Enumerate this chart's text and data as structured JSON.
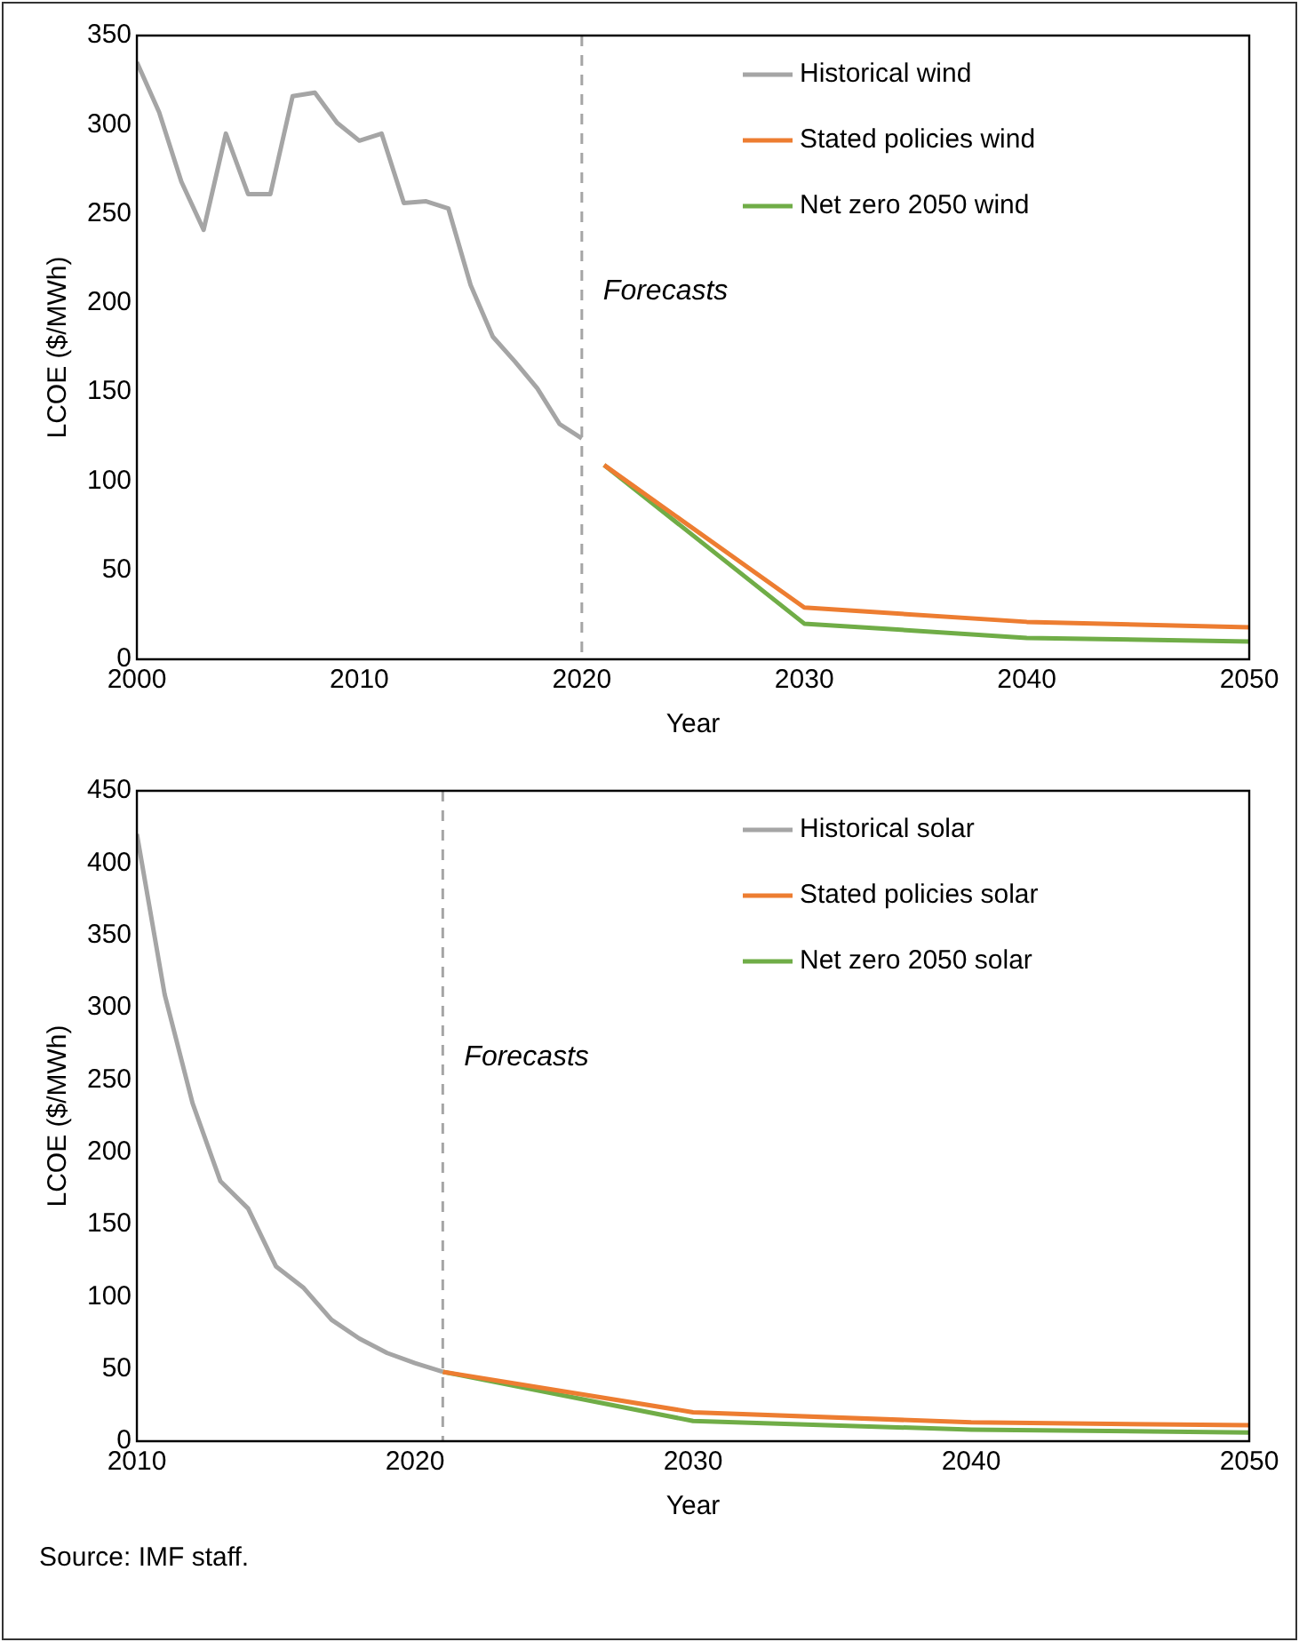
{
  "chart_data": [
    {
      "type": "line",
      "xlabel": "Year",
      "ylabel": "LCOE ($/MWh)",
      "xlim": [
        2000,
        2050
      ],
      "xticks": [
        2000,
        2010,
        2020,
        2030,
        2040,
        2050
      ],
      "ylim": [
        0,
        350
      ],
      "yticks": [
        0,
        50,
        100,
        150,
        200,
        250,
        300,
        350
      ],
      "grid": false,
      "legend": "top right",
      "marker": "none",
      "series": [
        {
          "name": "Historical wind",
          "color": "#a5a5a5",
          "x": [
            2000,
            2001,
            2002,
            2003,
            2004,
            2005,
            2006,
            2007,
            2008,
            2009,
            2010,
            2011,
            2012,
            2013,
            2014,
            2015,
            2016,
            2017,
            2018,
            2019,
            2020
          ],
          "values": [
            335,
            307,
            268,
            241,
            295,
            261,
            261,
            316,
            318,
            301,
            291,
            295,
            256,
            257,
            253,
            210,
            181,
            167,
            152,
            132,
            124
          ]
        },
        {
          "name": "Stated policies wind",
          "color": "#ed7d31",
          "x": [
            2021,
            2030,
            2040,
            2050
          ],
          "values": [
            109,
            29,
            21,
            18
          ]
        },
        {
          "name": "Net zero 2050 wind",
          "color": "#70ad47",
          "x": [
            2021,
            2030,
            2040,
            2050
          ],
          "values": [
            109,
            20,
            12,
            10
          ]
        }
      ],
      "ref_lines": [
        {
          "axis": "x",
          "value": 2020,
          "color": "#a5a5a5",
          "line_style": "dashed"
        }
      ],
      "annotations": [
        "Forecasts"
      ]
    },
    {
      "type": "line",
      "xlabel": "Year",
      "ylabel": "LCOE ($/MWh)",
      "xlim": [
        2010,
        2050
      ],
      "xticks": [
        2010,
        2020,
        2030,
        2040,
        2050
      ],
      "ylim": [
        0,
        450
      ],
      "yticks": [
        0,
        50,
        100,
        150,
        200,
        250,
        300,
        350,
        400,
        450
      ],
      "grid": false,
      "legend": "top right",
      "marker": "none",
      "series": [
        {
          "name": "Historical solar",
          "color": "#a5a5a5",
          "x": [
            2010,
            2011,
            2012,
            2013,
            2014,
            2015,
            2016,
            2017,
            2018,
            2019,
            2020,
            2021
          ],
          "values": [
            420,
            309,
            234,
            180,
            161,
            121,
            106,
            84,
            71,
            61,
            54,
            48
          ]
        },
        {
          "name": "Stated policies solar",
          "color": "#ed7d31",
          "x": [
            2021,
            2030,
            2040,
            2050
          ],
          "values": [
            48,
            20,
            13,
            11
          ]
        },
        {
          "name": "Net zero 2050 solar",
          "color": "#70ad47",
          "x": [
            2021,
            2030,
            2040,
            2050
          ],
          "values": [
            48,
            14,
            8,
            6
          ]
        }
      ],
      "ref_lines": [
        {
          "axis": "x",
          "value": 2021,
          "color": "#a5a5a5",
          "line_style": "dashed"
        }
      ],
      "annotations": [
        "Forecasts",
        "Source: IMF staff."
      ]
    }
  ]
}
